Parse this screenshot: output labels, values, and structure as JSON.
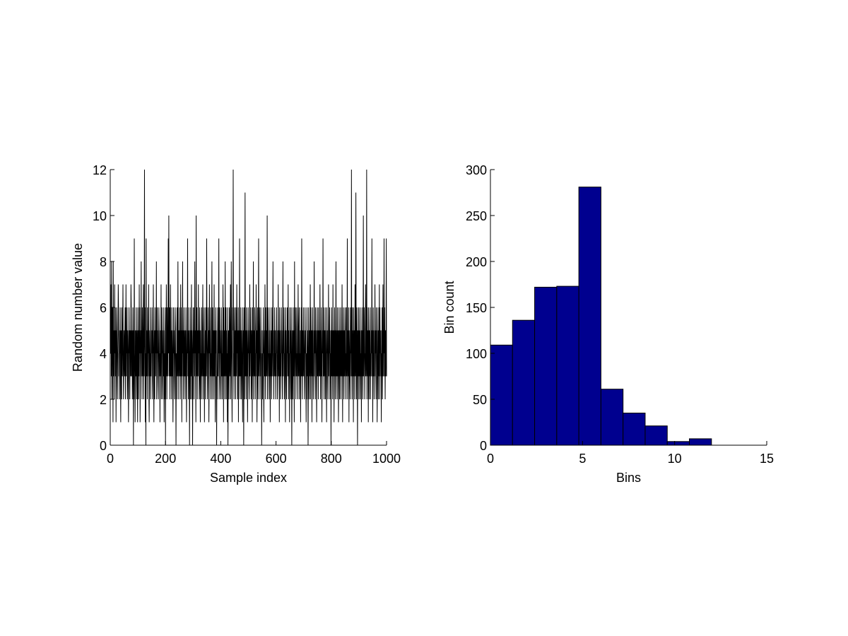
{
  "chart_data": [
    {
      "type": "line",
      "xlabel": "Sample index",
      "ylabel": "Random number value",
      "color": "#000000",
      "values": [
        5,
        4,
        7,
        3,
        8,
        2,
        4,
        6,
        5,
        1,
        8,
        3,
        4,
        5,
        2,
        7,
        4,
        6,
        3,
        5,
        1,
        4,
        6,
        5,
        3,
        2,
        4,
        5,
        7,
        6,
        3,
        4,
        2,
        5,
        4,
        6,
        3,
        1,
        5,
        4,
        2,
        6,
        4,
        3,
        5,
        7,
        4,
        2,
        3,
        5,
        4,
        3,
        5,
        6,
        2,
        4,
        7,
        3,
        5,
        4,
        6,
        2,
        3,
        5,
        4,
        1,
        3,
        6,
        4,
        5,
        2,
        5,
        4,
        3,
        7,
        6,
        3,
        4,
        5,
        2,
        3,
        6,
        4,
        0,
        5,
        2,
        9,
        4,
        3,
        1,
        5,
        4,
        3,
        6,
        2,
        4,
        5,
        3,
        1,
        6,
        4,
        2,
        5,
        3,
        7,
        4,
        6,
        1,
        3,
        5,
        4,
        8,
        3,
        5,
        2,
        6,
        4,
        3,
        5,
        7,
        2,
        4,
        5,
        12,
        3,
        6,
        1,
        4,
        0,
        9,
        3,
        5,
        4,
        2,
        6,
        3,
        5,
        4,
        7,
        2,
        1,
        4,
        5,
        3,
        6,
        2,
        4,
        3,
        5,
        4,
        6,
        3,
        2,
        5,
        4,
        7,
        3,
        1,
        4,
        5,
        2,
        6,
        4,
        3,
        5,
        4,
        8,
        2,
        3,
        6,
        4,
        5,
        3,
        2,
        4,
        6,
        5,
        3,
        4,
        1,
        5,
        3,
        4,
        7,
        2,
        6,
        4,
        5,
        3,
        2,
        4,
        6,
        3,
        5,
        1,
        4,
        2,
        5,
        6,
        0,
        4,
        3,
        7,
        5,
        2,
        6,
        4,
        3,
        5,
        9,
        4,
        10,
        3,
        5,
        6,
        2,
        4,
        7,
        3,
        5,
        4,
        2,
        6,
        3,
        5,
        4,
        1,
        3,
        6,
        4,
        5,
        3,
        2,
        4,
        6,
        5,
        3,
        0,
        4,
        2,
        5,
        6,
        3,
        4,
        8,
        2,
        5,
        3,
        4,
        6,
        3,
        5,
        2,
        4,
        7,
        3,
        6,
        4,
        1,
        5,
        4,
        8,
        3,
        5,
        2,
        4,
        6,
        3,
        5,
        4,
        2,
        5,
        3,
        6,
        4,
        1,
        3,
        5,
        4,
        9,
        3,
        6,
        2,
        4,
        5,
        3,
        0,
        4,
        6,
        2,
        5,
        3,
        4,
        7,
        2,
        5,
        4,
        0,
        3,
        6,
        4,
        5,
        2,
        6,
        3,
        8,
        4,
        5,
        3,
        1,
        10,
        3,
        4,
        6,
        2,
        5,
        4,
        3,
        7,
        4,
        5,
        2,
        3,
        6,
        4,
        1,
        5,
        3,
        4,
        2,
        6,
        4,
        3,
        5,
        7,
        2,
        4,
        3,
        5,
        6,
        1,
        4,
        3,
        5,
        2,
        6,
        4,
        3,
        9,
        5,
        4,
        2,
        3,
        6,
        4,
        5,
        1,
        3,
        7,
        4,
        5,
        3,
        6,
        2,
        4,
        3,
        5,
        8,
        2,
        4,
        6,
        3,
        5,
        4,
        2,
        7,
        3,
        4,
        5,
        1,
        3,
        6,
        4,
        5,
        0,
        3,
        2,
        4,
        6,
        3,
        5,
        4,
        9,
        2,
        3,
        6,
        4,
        5,
        3,
        2,
        4,
        6,
        3,
        5,
        2,
        4,
        3,
        7,
        5,
        1,
        6,
        3,
        4,
        5,
        2,
        8,
        3,
        4,
        6,
        2,
        5,
        3,
        4,
        1,
        6,
        0,
        3,
        5,
        4,
        2,
        6,
        5,
        3,
        4,
        7,
        2,
        4,
        8,
        5,
        3,
        1,
        4,
        6,
        5,
        12,
        3,
        4,
        2,
        5,
        6,
        3,
        4,
        5,
        2,
        6,
        4,
        3,
        7,
        4,
        5,
        2,
        3,
        6,
        1,
        5,
        4,
        3,
        9,
        4,
        2,
        5,
        3,
        6,
        4,
        2,
        5,
        4,
        3,
        1,
        6,
        4,
        5,
        0,
        3,
        6,
        2,
        4,
        11,
        3,
        5,
        4,
        2,
        6,
        3,
        5,
        4,
        1,
        3,
        6,
        4,
        5,
        3,
        2,
        4,
        7,
        3,
        5,
        4,
        6,
        2,
        3,
        5,
        4,
        1,
        6,
        3,
        4,
        8,
        2,
        5,
        4,
        3,
        6,
        5,
        2,
        4,
        3,
        7,
        4,
        5,
        1,
        3,
        6,
        4,
        2,
        5,
        9,
        3,
        4,
        6,
        5,
        2,
        4,
        3,
        6,
        4,
        5,
        0,
        3,
        4,
        2,
        5,
        4,
        6,
        3,
        1,
        4,
        5,
        3,
        7,
        4,
        2,
        6,
        3,
        5,
        4,
        3,
        10,
        2,
        4,
        6,
        5,
        3,
        4,
        2,
        5,
        3,
        6,
        1,
        4,
        3,
        5,
        4,
        2,
        6,
        3,
        4,
        5,
        8,
        3,
        4,
        2,
        5,
        3,
        6,
        4,
        3,
        5,
        2,
        4,
        3,
        6,
        4,
        5,
        2,
        3,
        4,
        7,
        3,
        5,
        4,
        1,
        6,
        3,
        5,
        2,
        4,
        3,
        6,
        4,
        5,
        3,
        2,
        4,
        8,
        3,
        5,
        4,
        6,
        2,
        4,
        3,
        5,
        1,
        6,
        4,
        3,
        2,
        5,
        4,
        6,
        3,
        4,
        7,
        2,
        5,
        3,
        4,
        1,
        6,
        4,
        5,
        3,
        2,
        6,
        4,
        0,
        3,
        5,
        4,
        2,
        6,
        3,
        5,
        4,
        1,
        8,
        3,
        4,
        6,
        5,
        2,
        4,
        3,
        6,
        5,
        3,
        4,
        2,
        7,
        4,
        3,
        5,
        6,
        2,
        4,
        3,
        5,
        1,
        4,
        6,
        3,
        9,
        4,
        2,
        5,
        3,
        4,
        6,
        3,
        5,
        4,
        2,
        3,
        6,
        4,
        5,
        3,
        1,
        4,
        2,
        6,
        3,
        5,
        4,
        0,
        3,
        6,
        4,
        2,
        5,
        3,
        4,
        7,
        2,
        6,
        4,
        3,
        5,
        1,
        4,
        6,
        3,
        5,
        2,
        4,
        3,
        8,
        4,
        5,
        3,
        2,
        6,
        4,
        5,
        3,
        1,
        4,
        6,
        3,
        4,
        5,
        2,
        6,
        3,
        4,
        5,
        3,
        7,
        4,
        2,
        5,
        3,
        6,
        4,
        1,
        3,
        5,
        4,
        9,
        3,
        6,
        4,
        2,
        5,
        3,
        4,
        6,
        2,
        5,
        4,
        3,
        1,
        6,
        4,
        5,
        3,
        2,
        4,
        7,
        3,
        5,
        4,
        6,
        2,
        4,
        3,
        5,
        0,
        4,
        6,
        3,
        5,
        4,
        2,
        7,
        3,
        4,
        5,
        1,
        4,
        6,
        3,
        5,
        2,
        4,
        8,
        3,
        5,
        4,
        2,
        6,
        3,
        4,
        5,
        1,
        3,
        6,
        4,
        2,
        5,
        4,
        3,
        6,
        2,
        5,
        4,
        3,
        7,
        4,
        1,
        5,
        3,
        6,
        4,
        2,
        5,
        3,
        4,
        6,
        3,
        4,
        2,
        5,
        6,
        3,
        4,
        9,
        2,
        5,
        4,
        3,
        6,
        1,
        5,
        4,
        3,
        2,
        6,
        4,
        5,
        3,
        12,
        4,
        2,
        6,
        3,
        5,
        4,
        1,
        6,
        4,
        3,
        5,
        2,
        7,
        4,
        3,
        11,
        5,
        2,
        4,
        6,
        3,
        0,
        5,
        4,
        3,
        6,
        2,
        4,
        5,
        3,
        6,
        2,
        4,
        3,
        5,
        1,
        4,
        6,
        3,
        5,
        2,
        4,
        10,
        3,
        4,
        6,
        5,
        2,
        4,
        3,
        7,
        5,
        3,
        4,
        12,
        2,
        6,
        4,
        3,
        5,
        1,
        6,
        4,
        2,
        5,
        3,
        4,
        6,
        2,
        4,
        3,
        5,
        4,
        9,
        3,
        5,
        1,
        4,
        6,
        3,
        5,
        2,
        4,
        3,
        7,
        4,
        5,
        3,
        2,
        6,
        4,
        5,
        1,
        3,
        4,
        6,
        2,
        5,
        4,
        3,
        7,
        2,
        6,
        4,
        5,
        3,
        4,
        1,
        5,
        3,
        6,
        2,
        4,
        7,
        3,
        5,
        4,
        9,
        3,
        6,
        4,
        2,
        5,
        3,
        4,
        9,
        3
      ],
      "xlim": [
        0,
        1000
      ],
      "xticks": [
        0,
        200,
        400,
        600,
        800,
        1000
      ],
      "ylim": [
        0,
        12
      ],
      "yticks": [
        0,
        2,
        4,
        6,
        8,
        10,
        12
      ]
    },
    {
      "type": "histogram",
      "xlabel": "Bins",
      "ylabel": "Bin count",
      "color": "#00008f",
      "bins": [
        0,
        1.2,
        2.4,
        3.6,
        4.8,
        6,
        7.2,
        8.4,
        9.6,
        10.8,
        12
      ],
      "counts": [
        109,
        136,
        172,
        173,
        281,
        61,
        35,
        21,
        4,
        7
      ],
      "xlim": [
        0,
        15
      ],
      "xticks": [
        0,
        5,
        10,
        15
      ],
      "ylim": [
        0,
        300
      ],
      "yticks": [
        0,
        50,
        100,
        150,
        200,
        250,
        300
      ]
    }
  ]
}
